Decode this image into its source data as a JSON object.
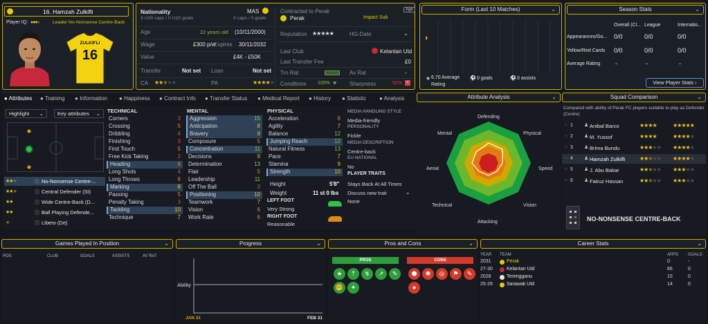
{
  "player": {
    "name": "16. Hamzah Zulkifli",
    "player_iq_label": "Player IQ:",
    "role_label": "Leader No-Nonsense Centre-Back",
    "shirt_name": "ZULKIFLI",
    "shirt_number": "16"
  },
  "info": {
    "nationality_label": "Nationality",
    "nationality_value": "MAS",
    "caps": "3 U20 caps / 0 U20 goals",
    "caps_right": "0 caps / 0 goals",
    "age_label": "Age",
    "age_value": "22 years old",
    "dob": "(10/11/2000)",
    "wage_label": "Wage",
    "wage_value": "£300 p/w",
    "expires_label": "Expires",
    "expires_value": "30/11/2032",
    "value_label": "Value",
    "value_value": "£4K - £50K",
    "transfer_label": "Transfer",
    "transfer_value": "Not set",
    "loan_label": "Loan",
    "loan_value": "Not set",
    "ca_label": "CA",
    "pa_label": "PA",
    "contracted_label": "Contracted to Perak",
    "club": "Perak",
    "squad_status": "Impact Sub",
    "age_badge": "Age",
    "reputation_label": "Reputation",
    "hg_label": "HG-Date",
    "last_club_label": "Last Club",
    "last_club_value": "Kelantan Utd",
    "last_fee_label": "Last Transfer Fee",
    "last_fee_value": "£0",
    "trn_rat_label": "Trn Rat",
    "av_rat_label": "Av Rat",
    "av_rat_value": "-",
    "conditions_label": "Conditions",
    "conditions_value": "100%",
    "sharpness_label": "Sharpness",
    "sharpness_value": "52%"
  },
  "form": {
    "title": "Form (Last 10 Matches)",
    "avg_value": "6.70 Average",
    "avg_label": "Rating",
    "goals": "0 goals",
    "assists": "0 assists"
  },
  "season": {
    "title": "Season Stats",
    "col1": "Overall (Cl...",
    "col2": "League",
    "col3": "Internatio...",
    "r1": "Appearances/Go...",
    "r1v1": "0/0",
    "r1v2": "0/0",
    "r1v3": "0/0",
    "r2": "Yellow/Red Cards",
    "r2v1": "0/0",
    "r2v2": "0/0",
    "r2v3": "0/0",
    "r3": "Average Rating",
    "r3v1": "-",
    "r3v2": "-",
    "r3v3": "-",
    "button": "View Player Stats"
  },
  "tabs": [
    "Attributes",
    "Training",
    "Information",
    "Happiness",
    "Contract Info",
    "Transfer Status",
    "Medical Report",
    "History",
    "Statistic",
    "Analysis"
  ],
  "highlight": {
    "select1": "Highlight",
    "select2": "Key attributes",
    "roles": [
      {
        "name": "No-Nonsense Centre-..."
      },
      {
        "name": "Central Defender (St)"
      },
      {
        "name": "Wide Centre-Back (D..."
      },
      {
        "name": "Ball Playing Defende..."
      },
      {
        "name": "Libero (De)"
      }
    ]
  },
  "technical": {
    "title": "TECHNICAL",
    "items": [
      {
        "n": "Corners",
        "v": "3"
      },
      {
        "n": "Crossing",
        "v": "5"
      },
      {
        "n": "Dribbling",
        "v": "4"
      },
      {
        "n": "Finishing",
        "v": "3"
      },
      {
        "n": "First Touch",
        "v": "5"
      },
      {
        "n": "Free Kick Taking",
        "v": "2"
      },
      {
        "n": "Heading",
        "v": "6"
      },
      {
        "n": "Long Shots",
        "v": "4"
      },
      {
        "n": "Long Throws",
        "v": "6"
      },
      {
        "n": "Marking",
        "v": "8"
      },
      {
        "n": "Passing",
        "v": "5"
      },
      {
        "n": "Penalty Taking",
        "v": "3"
      },
      {
        "n": "Tackling",
        "v": "10"
      },
      {
        "n": "Technique",
        "v": "7"
      }
    ]
  },
  "mental": {
    "title": "MENTAL",
    "items": [
      {
        "n": "Aggression",
        "v": "15"
      },
      {
        "n": "Anticipation",
        "v": "8"
      },
      {
        "n": "Bravery",
        "v": "9"
      },
      {
        "n": "Composure",
        "v": "5"
      },
      {
        "n": "Concentration",
        "v": "11"
      },
      {
        "n": "Decisions",
        "v": "9"
      },
      {
        "n": "Determination",
        "v": "13"
      },
      {
        "n": "Flair",
        "v": "5"
      },
      {
        "n": "Leadership",
        "v": "11"
      },
      {
        "n": "Off The Ball",
        "v": "3"
      },
      {
        "n": "Positioning",
        "v": "10"
      },
      {
        "n": "Teamwork",
        "v": "7"
      },
      {
        "n": "Vision",
        "v": "6"
      },
      {
        "n": "Work Rate",
        "v": "6"
      }
    ]
  },
  "physical": {
    "title": "PHYSICAL",
    "items": [
      {
        "n": "Acceleration",
        "v": "6"
      },
      {
        "n": "Agility",
        "v": "7"
      },
      {
        "n": "Balance",
        "v": "12"
      },
      {
        "n": "Jumping Reach",
        "v": "12"
      },
      {
        "n": "Natural Fitness",
        "v": "13"
      },
      {
        "n": "Pace",
        "v": "7"
      },
      {
        "n": "Stamina",
        "v": "9"
      },
      {
        "n": "Strength",
        "v": "10"
      }
    ],
    "height_label": "Height",
    "height_value": "5'8\"",
    "weight_label": "Weight",
    "weight_value": "11 st 0 lbs",
    "left_foot_label": "LEFT FOOT",
    "left_foot_value": "Very Strong",
    "right_foot_label": "RIGHT FOOT",
    "right_foot_value": "Reasonable"
  },
  "media": {
    "style_label": "MEDIA HANDLING STYLE",
    "style_value": "Media-friendly",
    "personality_label": "PERSONALITY",
    "personality_value": "Fickle",
    "description_label": "MEDIA DESCRIPTION",
    "description_value": "Centre-back",
    "eu_label": "EU NATIONAL",
    "eu_value": "No",
    "traits_label": "PLAYER TRAITS",
    "trait1": "Stays Back At All Times",
    "trait2": "Discuss new trait",
    "trait3": "None"
  },
  "analysis": {
    "title": "Attribute Analysis",
    "labels": [
      "Defending",
      "Physical",
      "Speed",
      "Vision",
      "Attacking",
      "Technical",
      "Aerial",
      "Mental"
    ]
  },
  "squad": {
    "title": "Squad Comparison",
    "desc": "Compared with ability of Perak FC players suitable to play as Defender (Centre)",
    "rows": [
      {
        "rank": "1",
        "name": "Anibal Barco"
      },
      {
        "rank": "2",
        "name": "M. Yussof"
      },
      {
        "rank": "3",
        "name": "Brima Bundu"
      },
      {
        "rank": "4",
        "name": "Hamzah Zulkifli"
      },
      {
        "rank": "5",
        "name": "J. Abu Bakar"
      },
      {
        "rank": "6",
        "name": "Fairuz Hassan"
      }
    ],
    "role_name": "NO-NONSENSE CENTRE-BACK"
  },
  "games": {
    "title": "Games Played In Position",
    "cols": [
      "POS",
      "CLUB",
      "GOALS",
      "ASSISTS",
      "AV RAT"
    ]
  },
  "progress": {
    "title": "Progress",
    "ability_label": "Ability",
    "start": "JAN 31",
    "end": "FEB 31"
  },
  "proscons": {
    "title": "Pros and Cons",
    "pros_label": "PROS",
    "cons_label": "CONS"
  },
  "career": {
    "title": "Career Stats",
    "col_year": "YEAR",
    "col_team": "TEAM",
    "col_apps": "APPS",
    "col_goals": "GOALS",
    "rows": [
      {
        "year": "2031",
        "team": "Perak",
        "apps": "0",
        "goals": "-"
      },
      {
        "year": "27-30",
        "team": "Kelantan Utd",
        "apps": "66",
        "goals": "0"
      },
      {
        "year": "2028",
        "team": "Terengganu",
        "apps": "15",
        "goals": "0"
      },
      {
        "year": "25-26",
        "team": "Sarawak Utd",
        "apps": "14",
        "goals": "0"
      }
    ]
  },
  "colors": {
    "accent": "#c9b200",
    "highlight_row": "#2e4156",
    "pros": "#2e9e3c",
    "cons": "#d23a2a"
  }
}
